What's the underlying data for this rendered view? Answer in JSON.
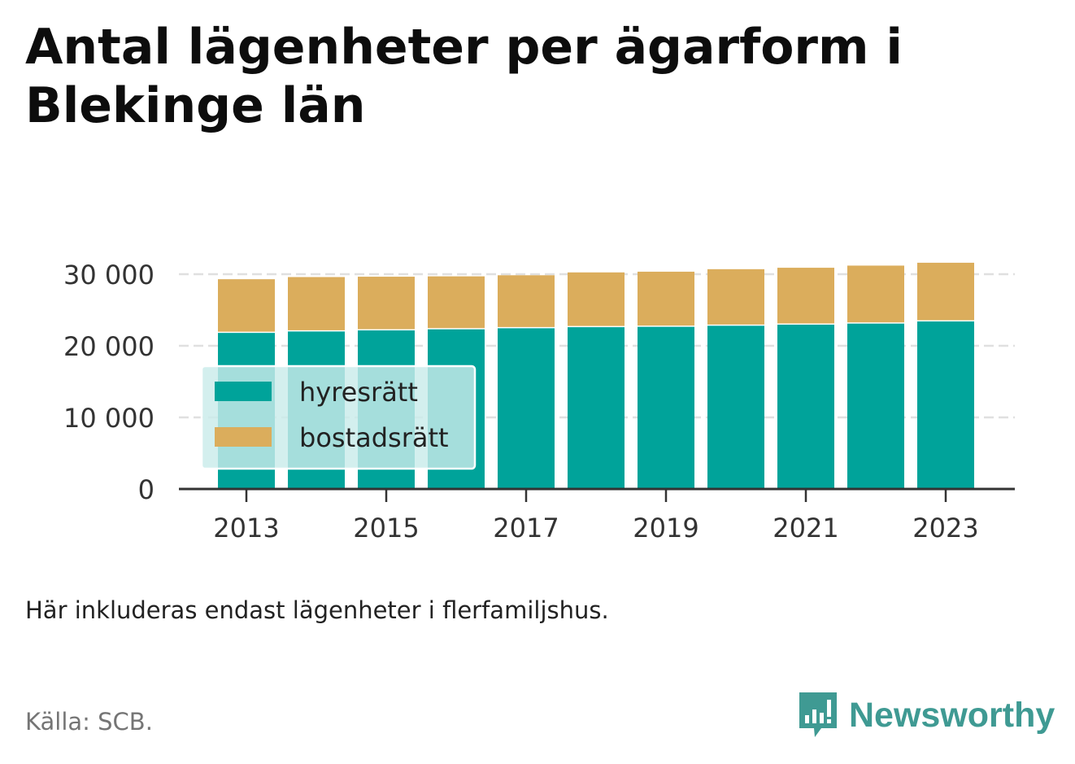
{
  "header": {
    "title": "Antal lägenheter per ägarform i Blekinge län"
  },
  "footer": {
    "note": "Här inkluderas endast lägenheter i flerfamiljshus.",
    "source": "Källa: SCB.",
    "brand": "Newsworthy",
    "brand_icon": "bar-chart-bubble-icon"
  },
  "colors": {
    "hyresratt": "#00a39a",
    "bostadsratt": "#dbad5c",
    "brand": "#3f9a93",
    "legend_bg": "#c9ebea"
  },
  "chart_data": {
    "type": "bar",
    "stacked": true,
    "x": [
      2013,
      2014,
      2015,
      2016,
      2017,
      2018,
      2019,
      2020,
      2021,
      2022,
      2023
    ],
    "x_tick_labels": [
      "2013",
      "2015",
      "2017",
      "2019",
      "2021",
      "2023"
    ],
    "series": [
      {
        "name": "hyresrätt",
        "color": "#00a39a",
        "values": [
          21800,
          22000,
          22150,
          22300,
          22450,
          22600,
          22650,
          22800,
          22950,
          23100,
          23400
        ]
      },
      {
        "name": "bostadsrätt",
        "color": "#dbad5c",
        "values": [
          7500,
          7600,
          7500,
          7400,
          7400,
          7650,
          7700,
          7900,
          7950,
          8100,
          8200
        ]
      }
    ],
    "ylim": [
      0,
      30000
    ],
    "y_ticks": [
      0,
      10000,
      20000,
      30000
    ],
    "y_tick_labels": [
      "0",
      "10 000",
      "20 000",
      "30 000"
    ],
    "grid": true,
    "legend_placement": "bottom-left inside"
  }
}
